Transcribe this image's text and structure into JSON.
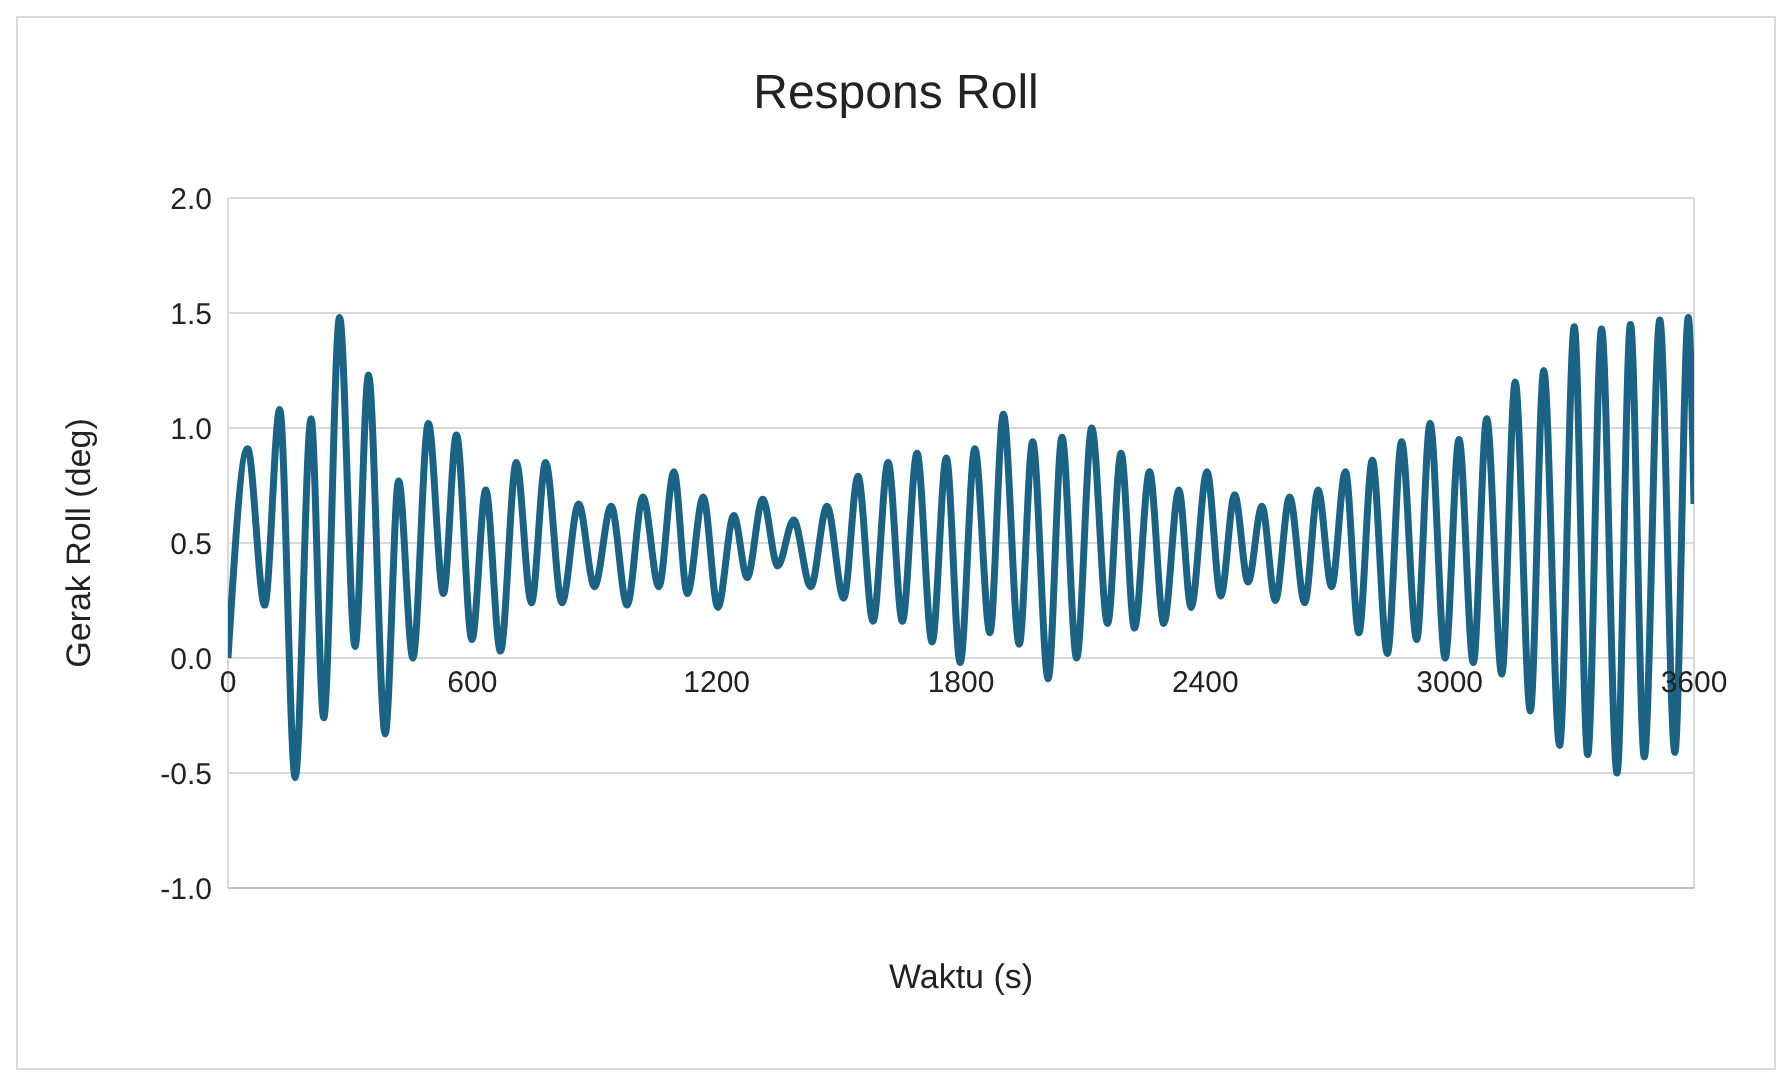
{
  "chart_data": {
    "type": "line",
    "title": "Respons Roll",
    "xlabel": "Waktu (s)",
    "ylabel": "Gerak Roll (deg)",
    "xlim": [
      0,
      3600
    ],
    "xticks": [
      0,
      600,
      1200,
      1800,
      2400,
      3000,
      3600
    ],
    "ylim": [
      -1.0,
      2.0
    ],
    "yticks": [
      {
        "value": -1,
        "label": "-1.0"
      },
      {
        "value": -0.5,
        "label": "-0.5"
      },
      {
        "value": 0,
        "label": "0.0"
      },
      {
        "value": 0.5,
        "label": "0.5"
      },
      {
        "value": 1,
        "label": "1.0"
      },
      {
        "value": 1.5,
        "label": "1.5"
      },
      {
        "value": 2,
        "label": "2.0"
      }
    ],
    "grid": true,
    "marker": "none",
    "line_style": "solid",
    "x": [
      0,
      48,
      90,
      127,
      165,
      204,
      235,
      274,
      312,
      345,
      386,
      419,
      454,
      492,
      529,
      561,
      599,
      633,
      669,
      708,
      745,
      780,
      820,
      861,
      900,
      941,
      980,
      1019,
      1058,
      1095,
      1128,
      1167,
      1203,
      1242,
      1275,
      1313,
      1350,
      1389,
      1431,
      1471,
      1512,
      1547,
      1584,
      1621,
      1656,
      1692,
      1729,
      1764,
      1798,
      1834,
      1871,
      1904,
      1943,
      1976,
      2014,
      2048,
      2084,
      2121,
      2160,
      2193,
      2226,
      2263,
      2298,
      2335,
      2365,
      2404,
      2438,
      2472,
      2505,
      2539,
      2572,
      2607,
      2644,
      2677,
      2710,
      2744,
      2777,
      2810,
      2847,
      2882,
      2919,
      2952,
      2989,
      3023,
      3058,
      3091,
      3128,
      3161,
      3198,
      3231,
      3270,
      3306,
      3339,
      3373,
      3411,
      3444,
      3478,
      3516,
      3553,
      3586,
      3600
    ],
    "series": [
      {
        "color": "#1b6385",
        "values": [
          0.0,
          0.91,
          0.23,
          1.08,
          -0.52,
          1.04,
          -0.26,
          1.48,
          0.05,
          1.23,
          -0.33,
          0.77,
          0.0,
          1.02,
          0.28,
          0.97,
          0.08,
          0.73,
          0.03,
          0.85,
          0.24,
          0.85,
          0.24,
          0.67,
          0.31,
          0.66,
          0.23,
          0.7,
          0.31,
          0.81,
          0.28,
          0.7,
          0.22,
          0.62,
          0.35,
          0.69,
          0.4,
          0.6,
          0.31,
          0.66,
          0.26,
          0.79,
          0.16,
          0.85,
          0.16,
          0.89,
          0.07,
          0.87,
          -0.02,
          0.91,
          0.11,
          1.06,
          0.06,
          0.94,
          -0.09,
          0.96,
          0.0,
          1.0,
          0.15,
          0.89,
          0.13,
          0.81,
          0.15,
          0.73,
          0.22,
          0.81,
          0.27,
          0.71,
          0.33,
          0.66,
          0.25,
          0.7,
          0.24,
          0.73,
          0.31,
          0.81,
          0.11,
          0.86,
          0.02,
          0.94,
          0.08,
          1.02,
          0.0,
          0.95,
          -0.02,
          1.04,
          -0.07,
          1.2,
          -0.23,
          1.25,
          -0.38,
          1.44,
          -0.42,
          1.43,
          -0.5,
          1.45,
          -0.43,
          1.47,
          -0.41,
          1.48,
          0.67
        ]
      }
    ]
  }
}
